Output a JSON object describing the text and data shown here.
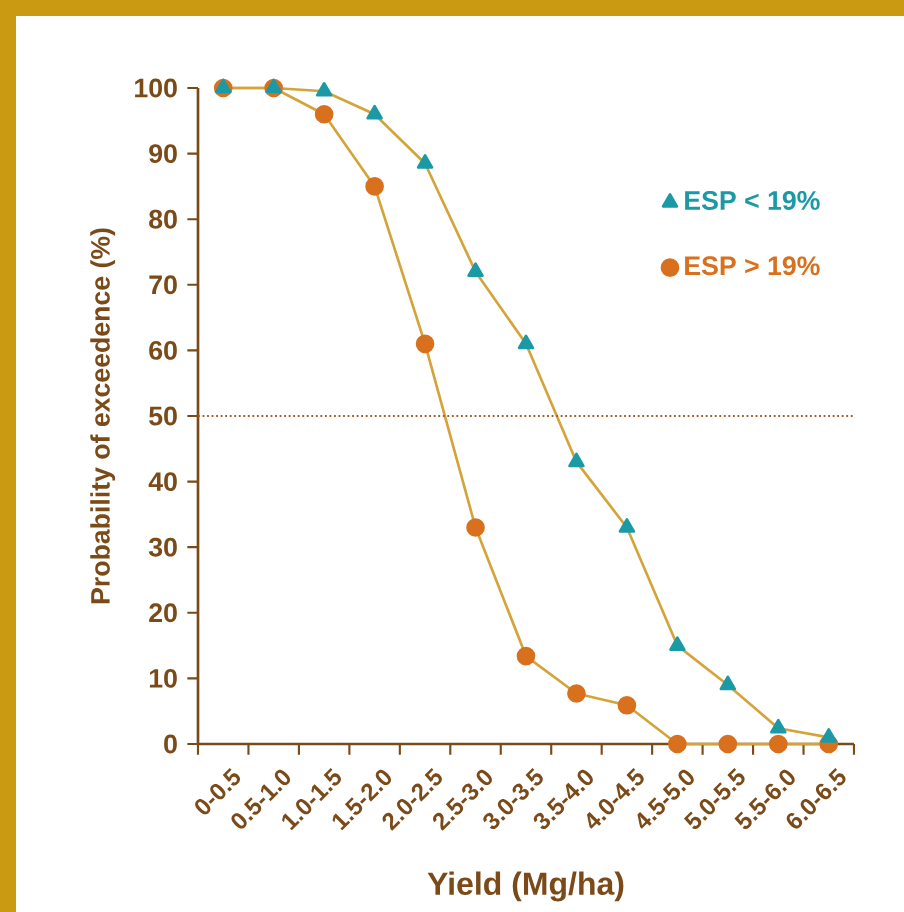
{
  "chart_data": {
    "type": "line",
    "xlabel": "Yield (Mg/ha)",
    "ylabel": "Probability of exceedence (%)",
    "categories": [
      "0-0.5",
      "0.5-1.0",
      "1.0-1.5",
      "1.5-2.0",
      "2.0-2.5",
      "2.5-3.0",
      "3.0-3.5",
      "3.5-4.0",
      "4.0-4.5",
      "4.5-5.0",
      "5.0-5.5",
      "5.5-6.0",
      "6.0-6.5"
    ],
    "series": [
      {
        "name": "ESP < 19%",
        "color": "#1b9aa5",
        "marker": "triangle",
        "values": [
          100,
          100,
          99.5,
          96,
          88.5,
          72,
          61,
          43,
          33,
          15,
          9,
          2.4,
          1
        ]
      },
      {
        "name": "ESP > 19%",
        "color": "#d8701e",
        "marker": "circle",
        "values": [
          100,
          100,
          96,
          85,
          61,
          33,
          13.4,
          7.7,
          5.9,
          0,
          0,
          0,
          0
        ]
      }
    ],
    "ylim": [
      0,
      100
    ],
    "yticks": [
      0,
      10,
      20,
      30,
      40,
      50,
      60,
      70,
      80,
      90,
      100
    ],
    "ref_lines": [
      {
        "axis": "y",
        "value": 50,
        "line_style": "dotted",
        "color": "#a0602d"
      }
    ],
    "legend": "top right",
    "grid": false,
    "line_style": "solid"
  }
}
